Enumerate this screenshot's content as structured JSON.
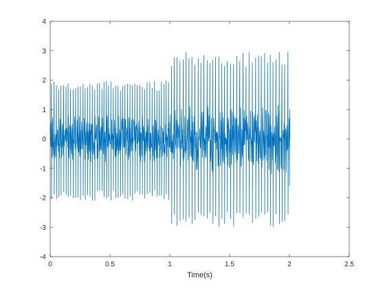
{
  "chart_data": {
    "type": "line",
    "title": "",
    "xlabel": "Time(s)",
    "ylabel": "",
    "xlim": [
      0,
      2.5
    ],
    "ylim": [
      -4,
      4
    ],
    "xticks": [
      0,
      0.5,
      1,
      1.5,
      2,
      2.5
    ],
    "xtick_labels": [
      "0",
      "0.5",
      "1",
      "1.5",
      "2",
      "2.5"
    ],
    "yticks": [
      -4,
      -3,
      -2,
      -1,
      0,
      1,
      2,
      3,
      4
    ],
    "ytick_labels": [
      "-4",
      "-3",
      "-2",
      "-1",
      "0",
      "1",
      "2",
      "3",
      "4"
    ],
    "grid": false,
    "legend": "none",
    "series": [
      {
        "color": "#0072BD",
        "description_of_shape": "dense oscillating waveform",
        "segments": [
          {
            "x_start": 0,
            "x_end": 1.0,
            "peak_max": 2.0,
            "peak_min": -2.1,
            "pulse_interval_s": 0.02,
            "body_amplitude": 0.7
          },
          {
            "x_start": 1.0,
            "x_end": 2.0,
            "peak_max": 3.0,
            "peak_min": -3.0,
            "pulse_interval_s": 0.025,
            "body_amplitude": 1.0
          }
        ]
      }
    ]
  }
}
